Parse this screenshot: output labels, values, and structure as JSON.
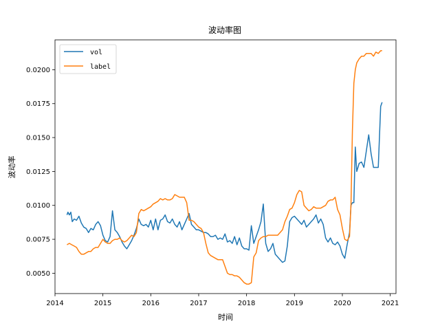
{
  "chart_data": {
    "type": "line",
    "title": "波动率图",
    "xlabel": "时间",
    "ylabel": "波动率",
    "xlim": [
      2014.0,
      2021.12
    ],
    "ylim": [
      0.0035,
      0.0222
    ],
    "xticks": [
      2014,
      2015,
      2016,
      2017,
      2018,
      2019,
      2020,
      2021
    ],
    "yticks": [
      0.005,
      0.0075,
      0.01,
      0.0125,
      0.015,
      0.0175,
      0.02
    ],
    "ytick_labels": [
      "0.0050",
      "0.0075",
      "0.0100",
      "0.0125",
      "0.0150",
      "0.0175",
      "0.0200"
    ],
    "grid": false,
    "legend_position": "top-left",
    "series": [
      {
        "name": "vol",
        "color": "#1f77b4",
        "x": [
          2014.25,
          2014.27,
          2014.3,
          2014.33,
          2014.36,
          2014.4,
          2014.45,
          2014.5,
          2014.55,
          2014.6,
          2014.65,
          2014.7,
          2014.75,
          2014.8,
          2014.85,
          2014.9,
          2014.95,
          2015.0,
          2015.05,
          2015.1,
          2015.15,
          2015.2,
          2015.25,
          2015.3,
          2015.35,
          2015.4,
          2015.45,
          2015.5,
          2015.55,
          2015.6,
          2015.65,
          2015.7,
          2015.75,
          2015.8,
          2015.85,
          2015.9,
          2015.95,
          2016.0,
          2016.05,
          2016.1,
          2016.15,
          2016.2,
          2016.25,
          2016.3,
          2016.35,
          2016.4,
          2016.45,
          2016.5,
          2016.55,
          2016.6,
          2016.65,
          2016.7,
          2016.75,
          2016.8,
          2016.85,
          2016.9,
          2016.95,
          2017.0,
          2017.05,
          2017.1,
          2017.15,
          2017.2,
          2017.25,
          2017.3,
          2017.35,
          2017.4,
          2017.45,
          2017.5,
          2017.55,
          2017.6,
          2017.65,
          2017.7,
          2017.75,
          2017.8,
          2017.85,
          2017.9,
          2017.95,
          2018.0,
          2018.05,
          2018.1,
          2018.15,
          2018.2,
          2018.25,
          2018.3,
          2018.35,
          2018.4,
          2018.45,
          2018.5,
          2018.55,
          2018.6,
          2018.65,
          2018.7,
          2018.75,
          2018.8,
          2018.85,
          2018.9,
          2018.95,
          2019.0,
          2019.05,
          2019.1,
          2019.15,
          2019.2,
          2019.25,
          2019.3,
          2019.35,
          2019.4,
          2019.45,
          2019.5,
          2019.55,
          2019.6,
          2019.65,
          2019.7,
          2019.75,
          2019.8,
          2019.85,
          2019.9,
          2019.95,
          2020.0,
          2020.05,
          2020.1,
          2020.15,
          2020.18,
          2020.21,
          2020.24,
          2020.27,
          2020.3,
          2020.35,
          2020.4,
          2020.45,
          2020.5,
          2020.55,
          2020.6,
          2020.65,
          2020.7,
          2020.75,
          2020.8,
          2020.83
        ],
        "y": [
          0.0093,
          0.0095,
          0.0093,
          0.0095,
          0.0088,
          0.009,
          0.0089,
          0.0092,
          0.0087,
          0.0084,
          0.0083,
          0.008,
          0.0083,
          0.0082,
          0.0086,
          0.0088,
          0.0085,
          0.0078,
          0.0074,
          0.0073,
          0.0077,
          0.0096,
          0.0082,
          0.008,
          0.0077,
          0.0073,
          0.007,
          0.0068,
          0.0071,
          0.0074,
          0.0078,
          0.0083,
          0.009,
          0.0086,
          0.0085,
          0.0086,
          0.0084,
          0.0089,
          0.0082,
          0.009,
          0.0082,
          0.0089,
          0.009,
          0.0093,
          0.0088,
          0.0087,
          0.009,
          0.0086,
          0.0084,
          0.0088,
          0.0082,
          0.0086,
          0.009,
          0.0094,
          0.0086,
          0.0084,
          0.0082,
          0.0082,
          0.0081,
          0.008,
          0.008,
          0.0079,
          0.0077,
          0.0077,
          0.0078,
          0.0075,
          0.0076,
          0.0075,
          0.0079,
          0.0073,
          0.0074,
          0.0072,
          0.0077,
          0.0071,
          0.0076,
          0.007,
          0.0068,
          0.0068,
          0.0067,
          0.0085,
          0.0072,
          0.0077,
          0.0082,
          0.0088,
          0.0101,
          0.0072,
          0.0066,
          0.0068,
          0.0072,
          0.0064,
          0.0062,
          0.006,
          0.0058,
          0.0059,
          0.007,
          0.0088,
          0.0091,
          0.0092,
          0.009,
          0.0088,
          0.0086,
          0.0089,
          0.0084,
          0.0086,
          0.0088,
          0.009,
          0.0093,
          0.0087,
          0.009,
          0.0086,
          0.0076,
          0.0073,
          0.0076,
          0.0072,
          0.0071,
          0.0073,
          0.007,
          0.0064,
          0.0061,
          0.0071,
          0.008,
          0.01,
          0.0102,
          0.0102,
          0.0143,
          0.0125,
          0.0131,
          0.0132,
          0.0128,
          0.014,
          0.0152,
          0.0138,
          0.0128,
          0.0128,
          0.0128,
          0.0173,
          0.0176
        ]
      },
      {
        "name": "label",
        "color": "#ff7f0e",
        "x": [
          2014.25,
          2014.3,
          2014.35,
          2014.4,
          2014.45,
          2014.5,
          2014.55,
          2014.6,
          2014.65,
          2014.7,
          2014.75,
          2014.8,
          2014.85,
          2014.9,
          2014.95,
          2015.0,
          2015.05,
          2015.1,
          2015.15,
          2015.2,
          2015.25,
          2015.3,
          2015.35,
          2015.4,
          2015.45,
          2015.5,
          2015.55,
          2015.6,
          2015.65,
          2015.7,
          2015.75,
          2015.8,
          2015.85,
          2015.9,
          2015.95,
          2016.0,
          2016.05,
          2016.1,
          2016.15,
          2016.2,
          2016.25,
          2016.3,
          2016.35,
          2016.4,
          2016.45,
          2016.5,
          2016.55,
          2016.6,
          2016.65,
          2016.7,
          2016.75,
          2016.8,
          2016.85,
          2016.9,
          2016.95,
          2017.0,
          2017.05,
          2017.1,
          2017.15,
          2017.2,
          2017.25,
          2017.3,
          2017.35,
          2017.4,
          2017.45,
          2017.5,
          2017.55,
          2017.6,
          2017.65,
          2017.7,
          2017.75,
          2017.8,
          2017.85,
          2017.9,
          2017.95,
          2018.0,
          2018.05,
          2018.1,
          2018.15,
          2018.2,
          2018.25,
          2018.3,
          2018.35,
          2018.4,
          2018.45,
          2018.5,
          2018.55,
          2018.6,
          2018.65,
          2018.7,
          2018.75,
          2018.8,
          2018.85,
          2018.9,
          2018.95,
          2019.0,
          2019.05,
          2019.1,
          2019.15,
          2019.2,
          2019.25,
          2019.3,
          2019.35,
          2019.4,
          2019.45,
          2019.5,
          2019.55,
          2019.6,
          2019.65,
          2019.7,
          2019.75,
          2019.8,
          2019.85,
          2019.9,
          2019.95,
          2020.0,
          2020.05,
          2020.1,
          2020.15,
          2020.18,
          2020.21,
          2020.24,
          2020.27,
          2020.3,
          2020.35,
          2020.4,
          2020.45,
          2020.5,
          2020.55,
          2020.6,
          2020.65,
          2020.7,
          2020.75,
          2020.8,
          2020.83
        ],
        "y": [
          0.0071,
          0.0072,
          0.0071,
          0.007,
          0.0069,
          0.0066,
          0.0064,
          0.0064,
          0.0065,
          0.0066,
          0.0066,
          0.0068,
          0.0069,
          0.0069,
          0.0072,
          0.0075,
          0.0073,
          0.0072,
          0.0072,
          0.0074,
          0.0075,
          0.0075,
          0.0076,
          0.0074,
          0.0073,
          0.0074,
          0.0076,
          0.0078,
          0.0077,
          0.008,
          0.0094,
          0.0097,
          0.0096,
          0.0097,
          0.0098,
          0.0099,
          0.0101,
          0.0102,
          0.0103,
          0.0105,
          0.0104,
          0.0105,
          0.0104,
          0.0104,
          0.0105,
          0.0108,
          0.0107,
          0.0106,
          0.0106,
          0.0106,
          0.0102,
          0.0089,
          0.0089,
          0.0088,
          0.0086,
          0.0084,
          0.0083,
          0.008,
          0.0072,
          0.0065,
          0.0063,
          0.0062,
          0.0061,
          0.006,
          0.006,
          0.006,
          0.0055,
          0.005,
          0.0049,
          0.0049,
          0.0048,
          0.0048,
          0.0047,
          0.0045,
          0.0043,
          0.0042,
          0.0042,
          0.0043,
          0.0062,
          0.0065,
          0.0074,
          0.0076,
          0.0077,
          0.0077,
          0.0078,
          0.0078,
          0.0078,
          0.0078,
          0.0078,
          0.008,
          0.0082,
          0.0088,
          0.0092,
          0.0097,
          0.0098,
          0.0102,
          0.0108,
          0.0111,
          0.011,
          0.01,
          0.0098,
          0.0096,
          0.0097,
          0.0099,
          0.0098,
          0.0098,
          0.0098,
          0.0099,
          0.01,
          0.0103,
          0.0104,
          0.0104,
          0.0106,
          0.0097,
          0.0093,
          0.0083,
          0.0075,
          0.0074,
          0.0077,
          0.01,
          0.0155,
          0.019,
          0.02,
          0.0205,
          0.0208,
          0.021,
          0.021,
          0.0212,
          0.0212,
          0.0212,
          0.021,
          0.0213,
          0.0212,
          0.0214,
          0.0214
        ]
      }
    ]
  }
}
